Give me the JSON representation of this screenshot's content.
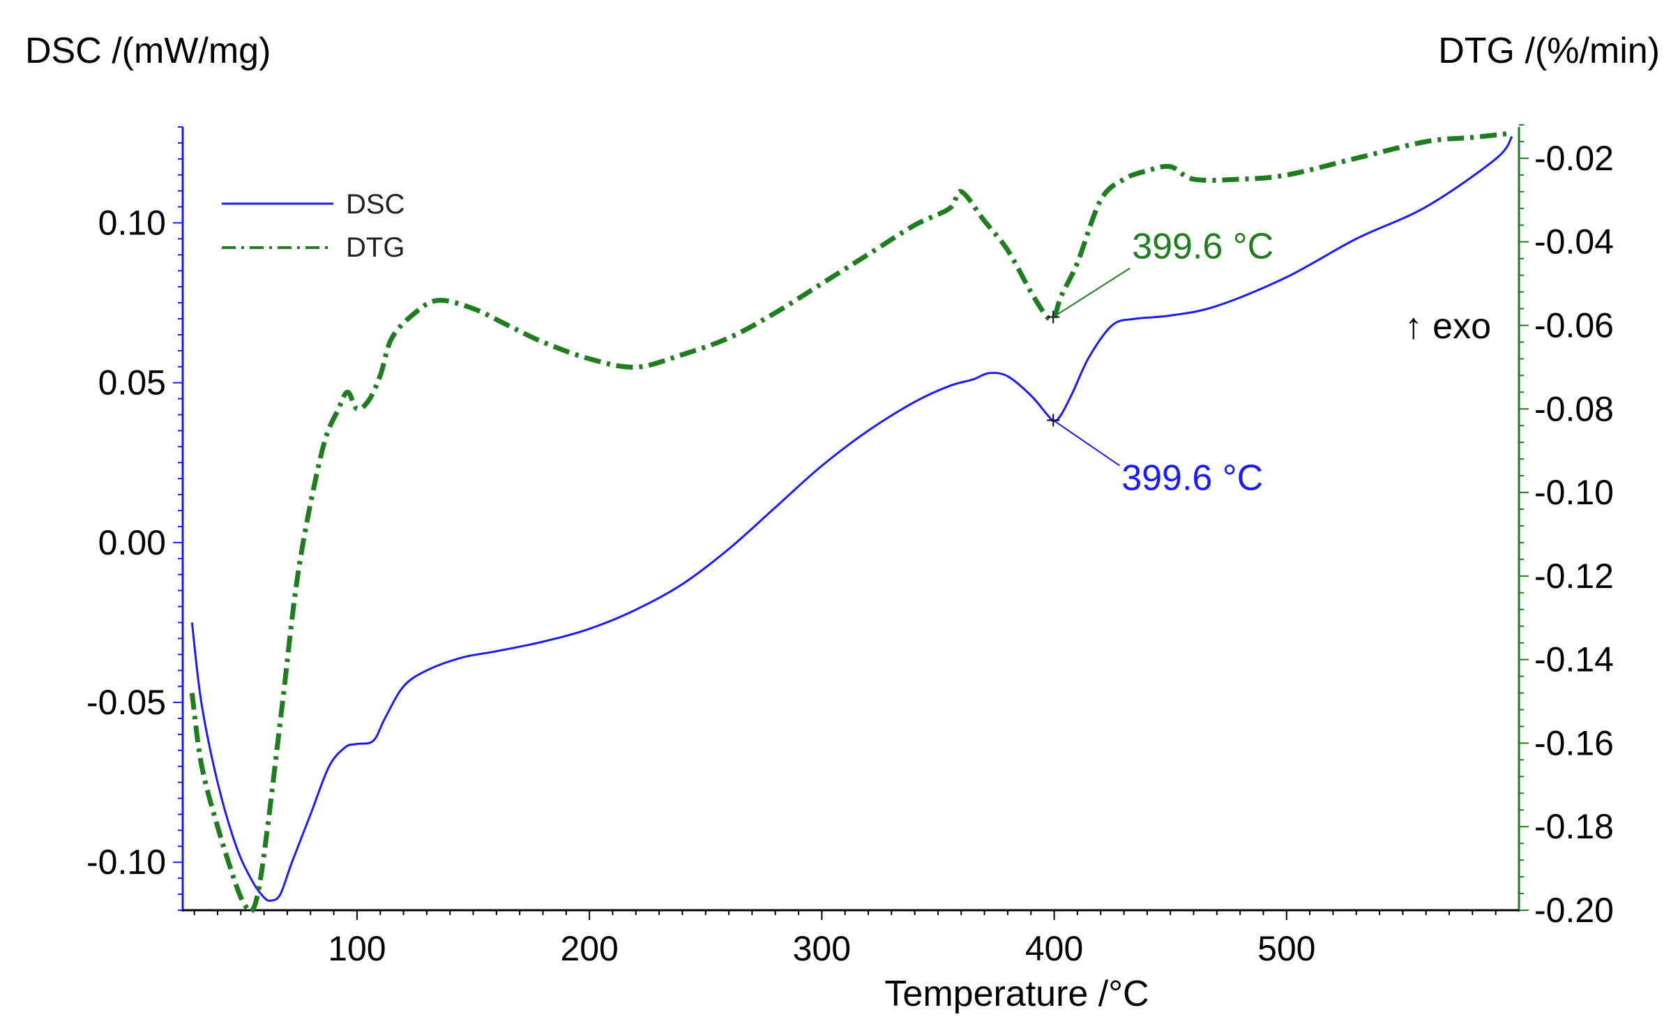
{
  "chart_data": {
    "type": "line",
    "title": "",
    "xlabel": "Temperature /°C",
    "ylabel_left": "DSC /(mW/mg)",
    "ylabel_right": "DTG /(%/min)",
    "exo_label": "↑ exo",
    "x_range": [
      25,
      600
    ],
    "y_left_range": [
      -0.115,
      0.13
    ],
    "y_right_range": [
      -0.2,
      -0.0125
    ],
    "x_ticks": [
      {
        "value": 100,
        "label": "100"
      },
      {
        "value": 200,
        "label": "200"
      },
      {
        "value": 300,
        "label": "300"
      },
      {
        "value": 400,
        "label": "400"
      },
      {
        "value": 500,
        "label": "500"
      }
    ],
    "y_left_ticks": [
      {
        "value": 0.1,
        "label": "0.10"
      },
      {
        "value": 0.05,
        "label": "0.05"
      },
      {
        "value": 0.0,
        "label": "0.00"
      },
      {
        "value": -0.05,
        "label": "-0.05"
      },
      {
        "value": -0.1,
        "label": "-0.10"
      }
    ],
    "y_right_ticks": [
      {
        "value": -0.02,
        "label": "-0.02"
      },
      {
        "value": -0.04,
        "label": "-0.04"
      },
      {
        "value": -0.06,
        "label": "-0.06"
      },
      {
        "value": -0.08,
        "label": "-0.08"
      },
      {
        "value": -0.1,
        "label": "-0.10"
      },
      {
        "value": -0.12,
        "label": "-0.12"
      },
      {
        "value": -0.14,
        "label": "-0.14"
      },
      {
        "value": -0.16,
        "label": "-0.16"
      },
      {
        "value": -0.18,
        "label": "-0.18"
      },
      {
        "value": -0.2,
        "label": "-0.20"
      }
    ],
    "series": [
      {
        "name": "DSC",
        "axis": "left",
        "color": "#1a1aff",
        "style": "solid",
        "x": [
          29,
          33,
          40,
          48,
          55,
          60,
          63,
          67,
          72,
          80,
          88,
          95,
          100,
          107,
          112,
          120,
          130,
          145,
          160,
          180,
          200,
          220,
          240,
          260,
          280,
          300,
          320,
          340,
          355,
          365,
          372,
          380,
          390,
          397,
          400,
          403,
          408,
          415,
          425,
          435,
          450,
          470,
          500,
          530,
          560,
          590,
          597
        ],
        "values": [
          -0.025,
          -0.05,
          -0.075,
          -0.095,
          -0.106,
          -0.111,
          -0.112,
          -0.11,
          -0.1,
          -0.085,
          -0.07,
          -0.064,
          -0.063,
          -0.062,
          -0.055,
          -0.045,
          -0.04,
          -0.036,
          -0.034,
          -0.031,
          -0.027,
          -0.021,
          -0.013,
          -0.002,
          0.011,
          0.024,
          0.035,
          0.044,
          0.049,
          0.051,
          0.053,
          0.052,
          0.046,
          0.04,
          0.038,
          0.04,
          0.047,
          0.058,
          0.068,
          0.07,
          0.071,
          0.074,
          0.083,
          0.095,
          0.105,
          0.12,
          0.127
        ]
      },
      {
        "name": "DTG",
        "axis": "right",
        "color": "#1e7d1e",
        "style": "dash-dot",
        "x": [
          29,
          33,
          40,
          48,
          52,
          55,
          58,
          62,
          68,
          75,
          85,
          92,
          96,
          100,
          105,
          110,
          115,
          125,
          135,
          150,
          165,
          180,
          200,
          220,
          240,
          260,
          280,
          300,
          320,
          340,
          355,
          360,
          370,
          380,
          390,
          397,
          400,
          403,
          410,
          420,
          430,
          440,
          450,
          460,
          480,
          500,
          530,
          560,
          580,
          597
        ],
        "values": [
          -0.148,
          -0.165,
          -0.18,
          -0.194,
          -0.199,
          -0.2,
          -0.194,
          -0.178,
          -0.15,
          -0.118,
          -0.09,
          -0.08,
          -0.076,
          -0.08,
          -0.078,
          -0.072,
          -0.063,
          -0.057,
          -0.054,
          -0.056,
          -0.06,
          -0.064,
          -0.068,
          -0.07,
          -0.067,
          -0.063,
          -0.057,
          -0.05,
          -0.043,
          -0.036,
          -0.032,
          -0.028,
          -0.035,
          -0.042,
          -0.052,
          -0.058,
          -0.058,
          -0.053,
          -0.045,
          -0.03,
          -0.025,
          -0.023,
          -0.022,
          -0.025,
          -0.025,
          -0.024,
          -0.02,
          -0.016,
          -0.015,
          -0.014
        ]
      }
    ],
    "annotations": [
      {
        "series": "DTG",
        "x": 399.6,
        "label": "399.6 °C"
      },
      {
        "series": "DSC",
        "x": 399.6,
        "label": "399.6 °C"
      }
    ],
    "legend": {
      "position": "top-left",
      "entries": [
        "DSC",
        "DTG"
      ]
    }
  }
}
